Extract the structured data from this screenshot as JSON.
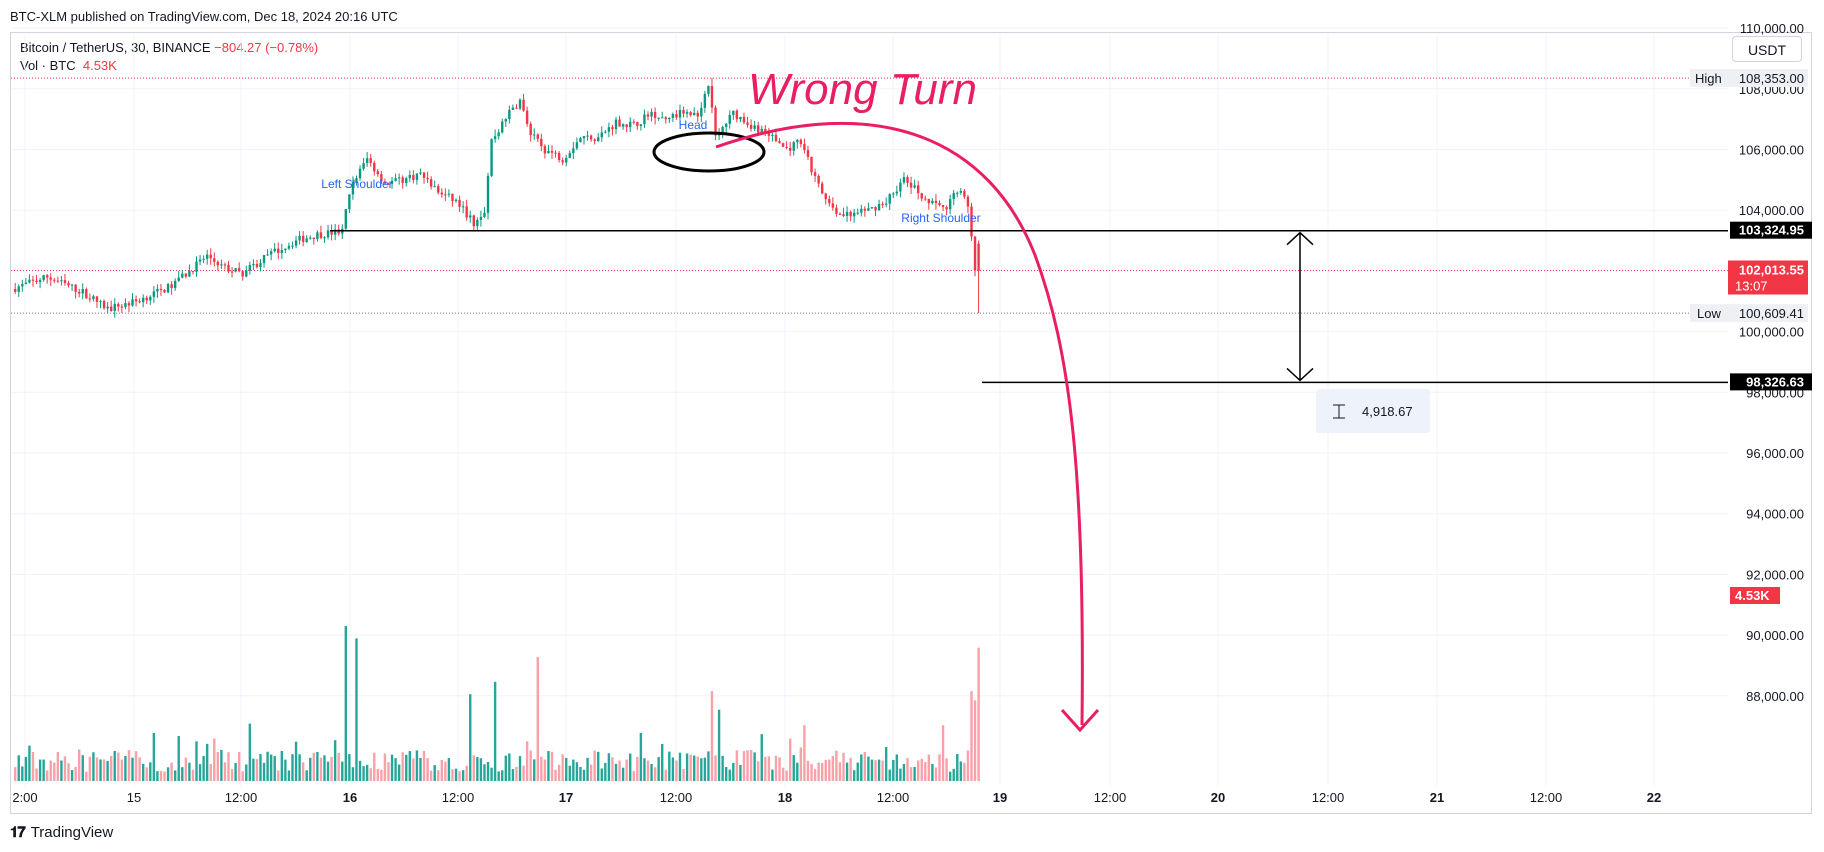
{
  "header": {
    "published": "BTC-XLM published on TradingView.com, Dec 18, 2024 20:16 UTC"
  },
  "legend": {
    "symbol": "Bitcoin / TetherUS, 30, BINANCE",
    "change": "−804.27 (−0.78%)",
    "vol_label": "Vol · BTC",
    "vol_value": "4.53K"
  },
  "currency": "USDT",
  "brand": "TradingView",
  "colors": {
    "up": "#089981",
    "down": "#f23645",
    "vol_up": "#26a69a",
    "vol_down": "#f7a1a8",
    "annotation": "#e91e63",
    "label": "#2962ff"
  },
  "chart_data": {
    "type": "candlestick",
    "interval": "30",
    "yaxis": {
      "ticks": [
        "110,000.00",
        "108,000.00",
        "106,000.00",
        "104,000.00",
        "100,000.00",
        "98,000.00",
        "96,000.00",
        "94,000.00",
        "92,000.00",
        "90,000.00",
        "88,000.00"
      ],
      "tick_values": [
        110000,
        108000,
        106000,
        104000,
        100000,
        98000,
        96000,
        94000,
        92000,
        90000,
        88000
      ],
      "range": [
        87000,
        111500
      ]
    },
    "xaxis": {
      "ticks": [
        "2:00",
        "15",
        "12:00",
        "16",
        "12:00",
        "17",
        "12:00",
        "18",
        "12:00",
        "19",
        "12:00",
        "20",
        "12:00",
        "21",
        "12:00",
        "22"
      ],
      "bold": [
        "16",
        "17",
        "18",
        "19",
        "20",
        "21",
        "22"
      ]
    },
    "price_labels": {
      "high_label": "High",
      "high": "108,353.00",
      "low_label": "Low",
      "low": "100,609.41",
      "current": "102,013.55",
      "countdown": "13:07",
      "level1": "103,324.95",
      "level2": "98,326.63",
      "volume": "4.53K"
    },
    "levels": {
      "high": 108353,
      "low": 100609.41,
      "current": 102013.55,
      "neckline": 103324.95,
      "target": 98326.63
    },
    "measure": {
      "label": "4,918.67"
    },
    "annotations": {
      "title": "Wrong Turn",
      "head": "Head",
      "left_shoulder": "Left Shoulder",
      "right_shoulder": "Right Shoulder"
    },
    "anchors": [
      {
        "i": 0,
        "p": 101400
      },
      {
        "i": 10,
        "p": 101800
      },
      {
        "i": 20,
        "p": 101300
      },
      {
        "i": 27,
        "p": 100750
      },
      {
        "i": 35,
        "p": 101000
      },
      {
        "i": 45,
        "p": 101500
      },
      {
        "i": 55,
        "p": 102500
      },
      {
        "i": 60,
        "p": 102100
      },
      {
        "i": 65,
        "p": 101900
      },
      {
        "i": 72,
        "p": 102500
      },
      {
        "i": 80,
        "p": 103000
      },
      {
        "i": 86,
        "p": 103200
      },
      {
        "i": 93,
        "p": 103300
      },
      {
        "i": 95,
        "p": 104600
      },
      {
        "i": 98,
        "p": 105300
      },
      {
        "i": 100,
        "p": 105700
      },
      {
        "i": 105,
        "p": 104900
      },
      {
        "i": 110,
        "p": 105000
      },
      {
        "i": 115,
        "p": 105200
      },
      {
        "i": 120,
        "p": 104600
      },
      {
        "i": 125,
        "p": 104300
      },
      {
        "i": 130,
        "p": 103600
      },
      {
        "i": 133,
        "p": 104000
      },
      {
        "i": 135,
        "p": 106300
      },
      {
        "i": 140,
        "p": 107200
      },
      {
        "i": 143,
        "p": 107600
      },
      {
        "i": 146,
        "p": 106500
      },
      {
        "i": 150,
        "p": 106000
      },
      {
        "i": 155,
        "p": 105700
      },
      {
        "i": 160,
        "p": 106400
      },
      {
        "i": 165,
        "p": 106400
      },
      {
        "i": 170,
        "p": 106900
      },
      {
        "i": 175,
        "p": 106800
      },
      {
        "i": 180,
        "p": 107200
      },
      {
        "i": 185,
        "p": 107000
      },
      {
        "i": 190,
        "p": 107300
      },
      {
        "i": 193,
        "p": 107100
      },
      {
        "i": 196,
        "p": 108200
      },
      {
        "i": 198,
        "p": 106400
      },
      {
        "i": 203,
        "p": 107200
      },
      {
        "i": 208,
        "p": 106800
      },
      {
        "i": 213,
        "p": 106500
      },
      {
        "i": 218,
        "p": 106000
      },
      {
        "i": 222,
        "p": 106300
      },
      {
        "i": 225,
        "p": 105300
      },
      {
        "i": 229,
        "p": 104300
      },
      {
        "i": 233,
        "p": 103900
      },
      {
        "i": 236,
        "p": 103800
      },
      {
        "i": 241,
        "p": 104000
      },
      {
        "i": 246,
        "p": 104300
      },
      {
        "i": 251,
        "p": 105000
      },
      {
        "i": 255,
        "p": 104600
      },
      {
        "i": 259,
        "p": 104200
      },
      {
        "i": 263,
        "p": 104100
      },
      {
        "i": 266,
        "p": 104700
      },
      {
        "i": 269,
        "p": 104200
      },
      {
        "i": 271,
        "p": 102000
      }
    ],
    "volume_scale": 100,
    "volume_spikes": [
      {
        "i": 93,
        "v": 100
      },
      {
        "i": 96,
        "v": 92
      },
      {
        "i": 147,
        "v": 80
      },
      {
        "i": 128,
        "v": 56
      },
      {
        "i": 135,
        "v": 64
      },
      {
        "i": 196,
        "v": 58
      },
      {
        "i": 222,
        "v": 36
      },
      {
        "i": 261,
        "v": 36
      },
      {
        "i": 269,
        "v": 58
      },
      {
        "i": 271,
        "v": 86
      },
      {
        "i": 39,
        "v": 31
      },
      {
        "i": 46,
        "v": 29
      },
      {
        "i": 66,
        "v": 37
      },
      {
        "i": 270,
        "v": 52
      },
      {
        "i": 198,
        "v": 46
      }
    ],
    "candle_count": 272
  }
}
